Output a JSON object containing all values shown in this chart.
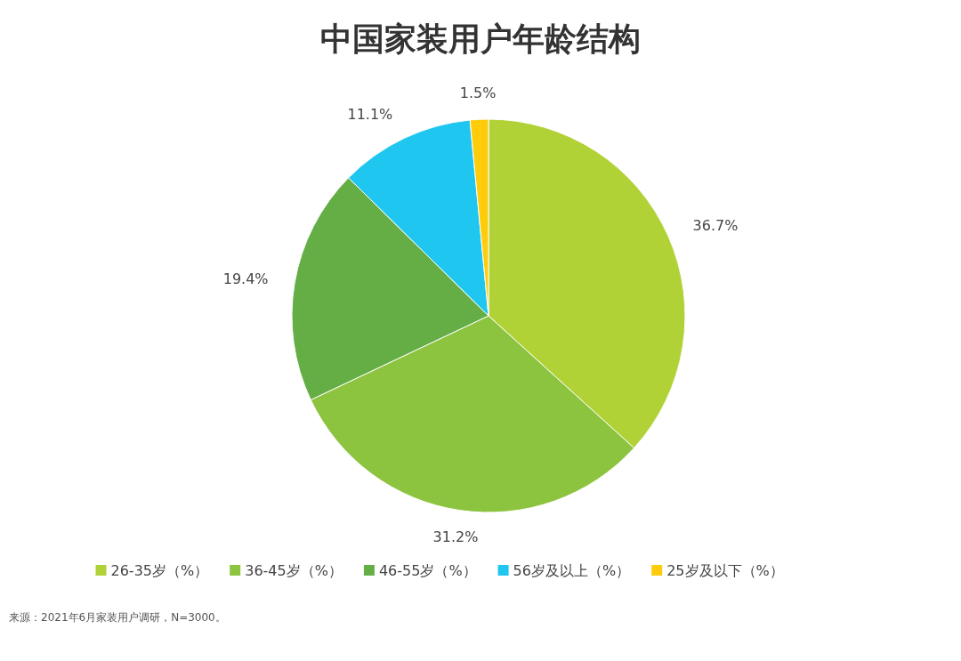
{
  "chart_data": {
    "type": "pie",
    "title": "中国家装用户年龄结构",
    "categories": [
      "26-35岁（%）",
      "36-45岁（%）",
      "46-55岁（%）",
      "56岁及以上（%）",
      "25岁及以下（%）"
    ],
    "values": [
      36.7,
      31.2,
      19.4,
      11.1,
      1.5
    ],
    "colors": [
      "#b1d236",
      "#8cc43f",
      "#65ae46",
      "#1fc6ef",
      "#fecc0a"
    ],
    "value_labels": [
      "36.7%",
      "31.2%",
      "19.4%",
      "11.1%",
      "1.5%"
    ],
    "legend": "bottom",
    "annotations": [
      "来源：2021年6月家装用户调研，N=3000。"
    ]
  }
}
